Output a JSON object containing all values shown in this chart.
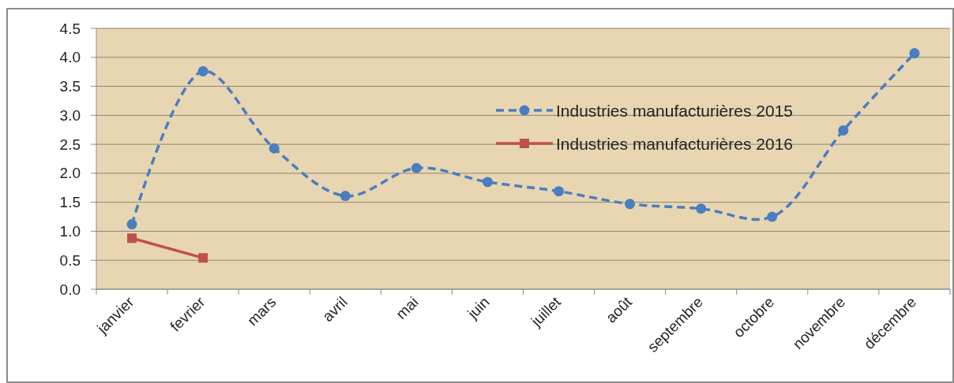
{
  "chart_data": {
    "type": "line",
    "categories": [
      "janvier",
      "fevrier",
      "mars",
      "avril",
      "mai",
      "juin",
      "juillet",
      "août",
      "septembre",
      "octobre",
      "novembre",
      "décembre"
    ],
    "series": [
      {
        "name": "Industries manufacturières 2015",
        "color": "#4a7ebf",
        "values": [
          1.12,
          3.76,
          2.43,
          1.61,
          2.09,
          1.85,
          1.69,
          1.47,
          1.39,
          1.25,
          2.74,
          4.07
        ],
        "marker": "circle",
        "line_style": "dashed"
      },
      {
        "name": "Industries manufacturières 2016",
        "color": "#c0504d",
        "values": [
          0.88,
          0.54,
          null,
          null,
          null,
          null,
          null,
          null,
          null,
          null,
          null,
          null
        ],
        "marker": "square",
        "line_style": "solid"
      }
    ],
    "ylim": [
      0,
      4.5
    ],
    "yticks": [
      {
        "value": 0,
        "label": "0.0"
      },
      0.5,
      {
        "value": 1,
        "label": "1.0"
      },
      1.5,
      {
        "value": 2,
        "label": "2.0"
      },
      2.5,
      {
        "value": 3,
        "label": "3.0"
      },
      3.5,
      {
        "value": 4,
        "label": "4.0"
      },
      4.5
    ],
    "grid": "y",
    "legend": "top right"
  }
}
